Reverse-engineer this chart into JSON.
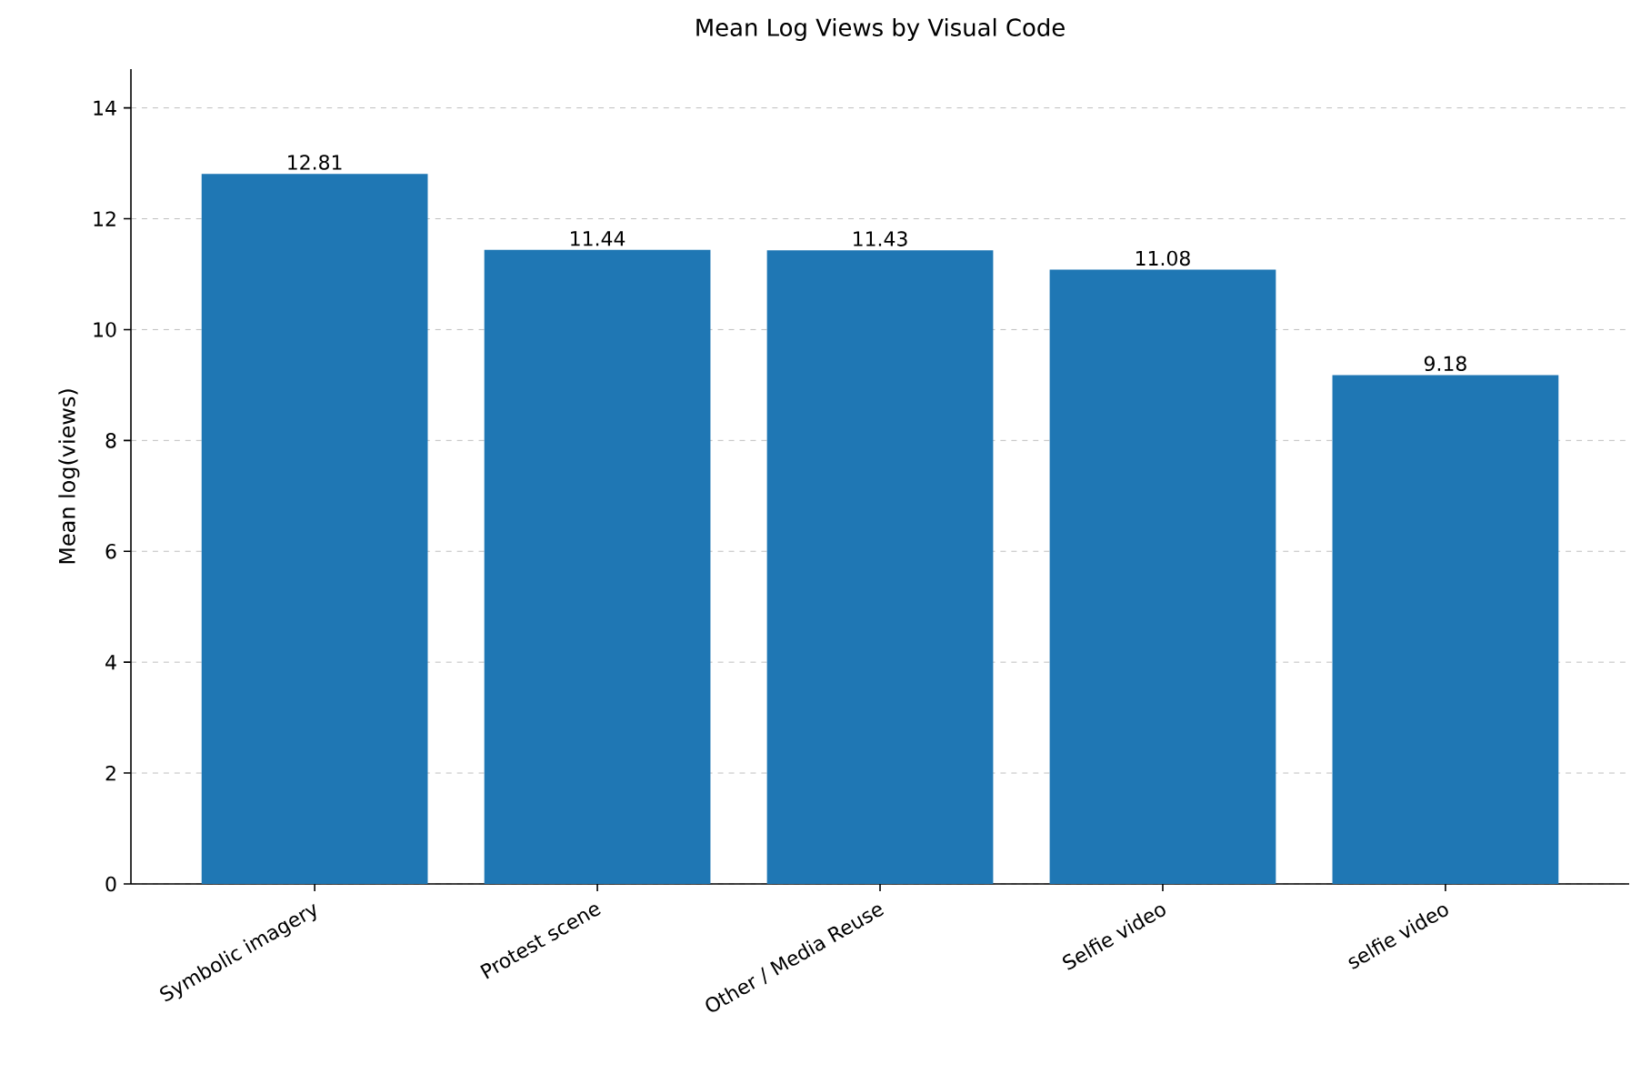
{
  "chart_data": {
    "type": "bar",
    "title": "Mean Log Views by Visual Code",
    "ylabel": "Mean log(views)",
    "categories": [
      "Symbolic imagery",
      "Protest scene",
      "Other / Media Reuse",
      "Selfie video",
      "selfie video"
    ],
    "values": [
      12.81,
      11.44,
      11.43,
      11.08,
      9.18
    ],
    "color": "#1f77b4",
    "ylim": [
      0,
      14.7
    ],
    "yticks": [
      0,
      2,
      4,
      6,
      8,
      10,
      12,
      14
    ],
    "grid": "y",
    "data_labels": true
  }
}
